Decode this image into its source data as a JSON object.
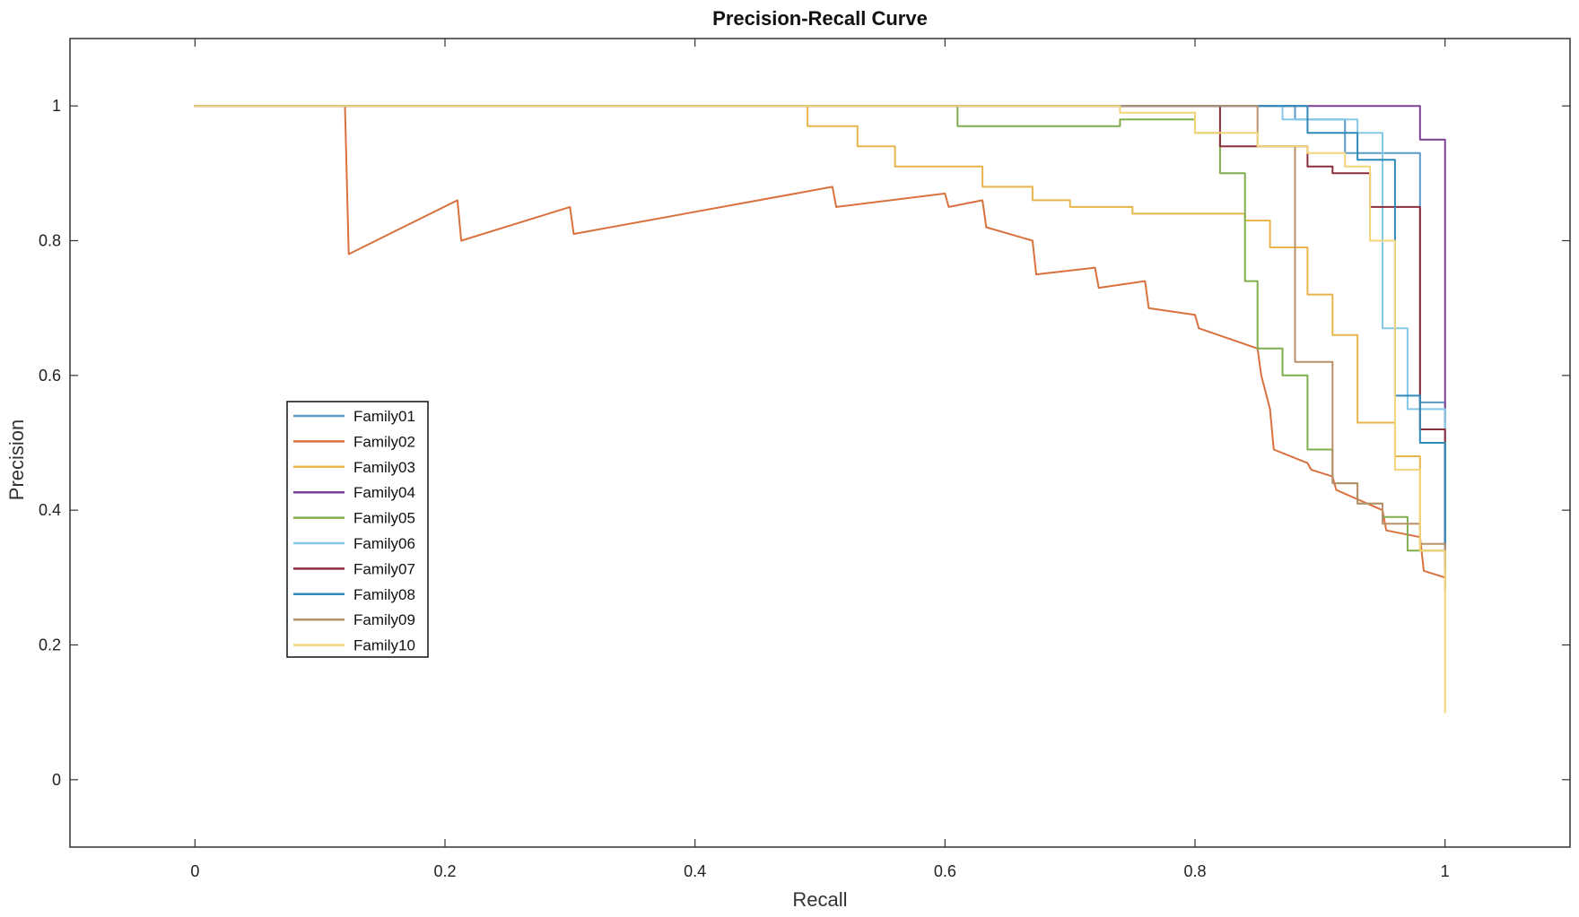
{
  "chart_data": {
    "type": "line",
    "title": "Precision-Recall Curve",
    "xlabel": "Recall",
    "ylabel": "Precision",
    "xlim": [
      -0.1,
      1.1
    ],
    "ylim": [
      -0.1,
      1.1
    ],
    "xticks": [
      0,
      0.2,
      0.4,
      0.6,
      0.8,
      1
    ],
    "xtick_labels": [
      "0",
      "0.2",
      "0.4",
      "0.6",
      "0.8",
      "1"
    ],
    "yticks": [
      0,
      0.2,
      0.4,
      0.6,
      0.8,
      1
    ],
    "ytick_labels": [
      "0",
      "0.2",
      "0.4",
      "0.6",
      "0.8",
      "1"
    ],
    "grid": false,
    "legend_position": "center-left",
    "series": [
      {
        "name": "Family01",
        "color": "#5b9bc8",
        "x": [
          0,
          0.82,
          0.88,
          0.88,
          0.92,
          0.92,
          0.98,
          0.98,
          1.0,
          1.0
        ],
        "y": [
          1,
          1,
          1,
          0.98,
          0.98,
          0.93,
          0.93,
          0.56,
          0.56,
          0.33
        ]
      },
      {
        "name": "Family02",
        "color": "#d9713f",
        "x": [
          0,
          0.12,
          0.123,
          0.21,
          0.213,
          0.3,
          0.303,
          0.51,
          0.513,
          0.6,
          0.603,
          0.63,
          0.633,
          0.67,
          0.673,
          0.72,
          0.723,
          0.76,
          0.763,
          0.8,
          0.803,
          0.85,
          0.853,
          0.86,
          0.863,
          0.89,
          0.893,
          0.91,
          0.913,
          0.95,
          0.953,
          0.98,
          0.983,
          1.0,
          1.0
        ],
        "y": [
          1,
          1,
          0.78,
          0.86,
          0.8,
          0.85,
          0.81,
          0.88,
          0.85,
          0.87,
          0.85,
          0.86,
          0.82,
          0.8,
          0.75,
          0.76,
          0.73,
          0.74,
          0.7,
          0.69,
          0.67,
          0.64,
          0.6,
          0.55,
          0.49,
          0.47,
          0.46,
          0.45,
          0.43,
          0.4,
          0.37,
          0.36,
          0.31,
          0.3,
          0.28
        ]
      },
      {
        "name": "Family03",
        "color": "#e8b54a",
        "x": [
          0,
          0.49,
          0.49,
          0.53,
          0.53,
          0.56,
          0.56,
          0.63,
          0.63,
          0.67,
          0.67,
          0.7,
          0.7,
          0.75,
          0.75,
          0.84,
          0.84,
          0.86,
          0.86,
          0.89,
          0.89,
          0.91,
          0.91,
          0.93,
          0.93,
          0.96,
          0.96,
          0.98,
          0.98,
          1.0,
          1.0
        ],
        "y": [
          1,
          1,
          0.97,
          0.97,
          0.94,
          0.94,
          0.91,
          0.91,
          0.88,
          0.88,
          0.86,
          0.86,
          0.85,
          0.85,
          0.84,
          0.84,
          0.83,
          0.83,
          0.79,
          0.79,
          0.72,
          0.72,
          0.66,
          0.66,
          0.53,
          0.53,
          0.48,
          0.48,
          0.34,
          0.34,
          0.29
        ]
      },
      {
        "name": "Family04",
        "color": "#7b3f94",
        "x": [
          0,
          0.98,
          0.98,
          1.0,
          1.0
        ],
        "y": [
          1,
          1,
          0.95,
          0.95,
          0.53
        ]
      },
      {
        "name": "Family05",
        "color": "#7fae4e",
        "x": [
          0,
          0.61,
          0.61,
          0.74,
          0.74,
          0.8,
          0.8,
          0.82,
          0.82,
          0.84,
          0.84,
          0.85,
          0.85,
          0.87,
          0.87,
          0.89,
          0.89,
          0.91,
          0.91,
          0.93,
          0.93,
          0.95,
          0.95,
          0.97,
          0.97,
          1.0,
          1.0
        ],
        "y": [
          1,
          1,
          0.97,
          0.97,
          0.98,
          0.98,
          0.96,
          0.96,
          0.9,
          0.9,
          0.74,
          0.74,
          0.64,
          0.64,
          0.6,
          0.6,
          0.49,
          0.49,
          0.44,
          0.44,
          0.41,
          0.41,
          0.39,
          0.39,
          0.34,
          0.34,
          0.32
        ]
      },
      {
        "name": "Family06",
        "color": "#86c8e8",
        "x": [
          0,
          0.87,
          0.87,
          0.93,
          0.93,
          0.95,
          0.95,
          0.97,
          0.97,
          1.0,
          1.0
        ],
        "y": [
          1,
          1,
          0.98,
          0.98,
          0.96,
          0.96,
          0.67,
          0.67,
          0.55,
          0.55,
          0.37
        ]
      },
      {
        "name": "Family07",
        "color": "#8b2e3c",
        "x": [
          0,
          0.82,
          0.82,
          0.89,
          0.89,
          0.91,
          0.91,
          0.94,
          0.94,
          0.98,
          0.98,
          1.0,
          1.0
        ],
        "y": [
          1,
          1,
          0.94,
          0.94,
          0.91,
          0.91,
          0.9,
          0.9,
          0.85,
          0.85,
          0.52,
          0.52,
          0.31
        ]
      },
      {
        "name": "Family08",
        "color": "#2e8ab8",
        "x": [
          0,
          0.89,
          0.89,
          0.93,
          0.93,
          0.96,
          0.96,
          0.98,
          0.98,
          1.0,
          1.0
        ],
        "y": [
          1,
          1,
          0.96,
          0.96,
          0.92,
          0.92,
          0.57,
          0.57,
          0.5,
          0.5,
          0.32
        ]
      },
      {
        "name": "Family09",
        "color": "#b8906a",
        "x": [
          0,
          0.85,
          0.85,
          0.88,
          0.88,
          0.91,
          0.91,
          0.93,
          0.93,
          0.95,
          0.95,
          0.98,
          0.98,
          1.0,
          1.0
        ],
        "y": [
          1,
          1,
          0.94,
          0.94,
          0.62,
          0.62,
          0.44,
          0.44,
          0.41,
          0.41,
          0.38,
          0.38,
          0.35,
          0.35,
          0.3
        ]
      },
      {
        "name": "Family10",
        "color": "#f2d479",
        "x": [
          0,
          0.74,
          0.74,
          0.8,
          0.8,
          0.85,
          0.85,
          0.89,
          0.89,
          0.92,
          0.92,
          0.94,
          0.94,
          0.96,
          0.96,
          0.98,
          0.98,
          1.0,
          1.0
        ],
        "y": [
          1,
          1,
          0.99,
          0.99,
          0.96,
          0.96,
          0.94,
          0.94,
          0.93,
          0.93,
          0.91,
          0.91,
          0.8,
          0.8,
          0.46,
          0.46,
          0.34,
          0.34,
          0.1
        ]
      }
    ]
  }
}
